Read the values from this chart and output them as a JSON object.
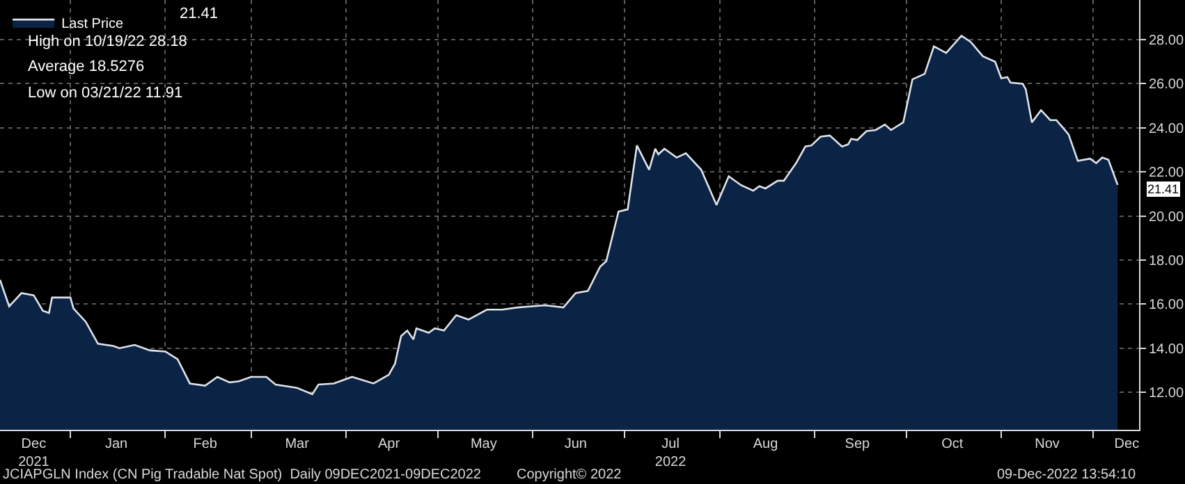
{
  "chart_data": {
    "type": "area",
    "x": [
      "2021-12-09",
      "2021-12-12",
      "2021-12-16",
      "2021-12-20",
      "2021-12-23",
      "2021-12-25",
      "2021-12-26",
      "2022-01-01",
      "2022-01-02",
      "2022-01-06",
      "2022-01-10",
      "2022-01-15",
      "2022-01-17",
      "2022-01-22",
      "2022-01-27",
      "2022-02-01",
      "2022-02-05",
      "2022-02-09",
      "2022-02-14",
      "2022-02-18",
      "2022-02-22",
      "2022-02-25",
      "2022-03-01",
      "2022-03-06",
      "2022-03-09",
      "2022-03-16",
      "2022-03-21",
      "2022-03-23",
      "2022-03-28",
      "2022-04-03",
      "2022-04-10",
      "2022-04-15",
      "2022-04-17",
      "2022-04-19",
      "2022-04-21",
      "2022-04-23",
      "2022-04-24",
      "2022-04-28",
      "2022-04-30",
      "2022-05-03",
      "2022-05-07",
      "2022-05-11",
      "2022-05-17",
      "2022-05-22",
      "2022-05-27",
      "2022-06-05",
      "2022-06-11",
      "2022-06-15",
      "2022-06-19",
      "2022-06-23",
      "2022-06-25",
      "2022-06-29",
      "2022-07-02",
      "2022-07-05",
      "2022-07-09",
      "2022-07-11",
      "2022-07-12",
      "2022-07-14",
      "2022-07-18",
      "2022-07-21",
      "2022-07-26",
      "2022-07-31",
      "2022-08-04",
      "2022-08-08",
      "2022-08-12",
      "2022-08-14",
      "2022-08-16",
      "2022-08-20",
      "2022-08-22",
      "2022-08-26",
      "2022-08-29",
      "2022-08-31",
      "2022-09-03",
      "2022-09-06",
      "2022-09-10",
      "2022-09-12",
      "2022-09-13",
      "2022-09-15",
      "2022-09-18",
      "2022-09-21",
      "2022-09-24",
      "2022-09-26",
      "2022-09-30",
      "2022-10-03",
      "2022-10-07",
      "2022-10-10",
      "2022-10-14",
      "2022-10-19",
      "2022-10-22",
      "2022-10-26",
      "2022-10-30",
      "2022-11-01",
      "2022-11-03",
      "2022-11-04",
      "2022-11-08",
      "2022-11-09",
      "2022-11-11",
      "2022-11-14",
      "2022-11-17",
      "2022-11-19",
      "2022-11-23",
      "2022-11-26",
      "2022-11-30",
      "2022-12-02",
      "2022-12-04",
      "2022-12-06",
      "2022-12-09"
    ],
    "series": [
      {
        "name": "Last Price",
        "color": "#0b2344",
        "values": [
          17.1,
          15.9,
          16.5,
          16.4,
          15.7,
          15.6,
          16.3,
          16.3,
          15.8,
          15.2,
          14.2,
          14.1,
          14.0,
          14.15,
          13.9,
          13.85,
          13.5,
          12.4,
          12.3,
          12.7,
          12.45,
          12.5,
          12.7,
          12.7,
          12.35,
          12.2,
          11.91,
          12.35,
          12.4,
          12.7,
          12.4,
          12.8,
          13.3,
          14.55,
          14.8,
          14.4,
          14.9,
          14.7,
          14.9,
          14.8,
          15.5,
          15.3,
          15.75,
          15.75,
          15.85,
          15.95,
          15.85,
          16.5,
          16.6,
          17.7,
          17.95,
          20.2,
          20.3,
          23.2,
          22.1,
          23.05,
          22.8,
          23.05,
          22.65,
          22.85,
          22.1,
          20.5,
          21.8,
          21.4,
          21.15,
          21.35,
          21.25,
          21.6,
          21.6,
          22.4,
          23.15,
          23.2,
          23.6,
          23.65,
          23.15,
          23.25,
          23.5,
          23.45,
          23.85,
          23.9,
          24.15,
          23.9,
          24.25,
          26.2,
          26.45,
          27.7,
          27.4,
          28.18,
          27.9,
          27.25,
          27.0,
          26.25,
          26.3,
          26.05,
          26.0,
          25.75,
          24.25,
          24.8,
          24.35,
          24.35,
          23.7,
          22.5,
          22.6,
          22.4,
          22.65,
          22.55,
          21.41
        ]
      }
    ],
    "xlim": [
      "2021-12-09",
      "2022-12-16"
    ],
    "xticks": [
      {
        "value": "2022-01-01",
        "label": null
      },
      {
        "value": "2022-02-01",
        "label": null
      },
      {
        "value": "2022-03-01",
        "label": null
      },
      {
        "value": "2022-04-01",
        "label": null
      },
      {
        "value": "2022-05-01",
        "label": null
      },
      {
        "value": "2022-06-01",
        "label": null
      },
      {
        "value": "2022-07-01",
        "label": null
      },
      {
        "value": "2022-08-01",
        "label": null
      },
      {
        "value": "2022-09-01",
        "label": null
      },
      {
        "value": "2022-10-01",
        "label": null
      },
      {
        "value": "2022-11-01",
        "label": null
      },
      {
        "value": "2022-12-01",
        "label": null
      },
      {
        "value": "2021-12-20",
        "label": "Dec\n2021"
      },
      {
        "value": "2022-01-16",
        "label": "Jan"
      },
      {
        "value": "2022-02-14",
        "label": "Feb"
      },
      {
        "value": "2022-03-16",
        "label": "Mar"
      },
      {
        "value": "2022-04-15",
        "label": "Apr"
      },
      {
        "value": "2022-05-16",
        "label": "May"
      },
      {
        "value": "2022-06-15",
        "label": "Jun"
      },
      {
        "value": "2022-07-16",
        "label": "Jul\n2022"
      },
      {
        "value": "2022-08-16",
        "label": "Aug"
      },
      {
        "value": "2022-09-15",
        "label": "Sep"
      },
      {
        "value": "2022-10-16",
        "label": "Oct"
      },
      {
        "value": "2022-11-16",
        "label": "Nov"
      },
      {
        "value": "2022-12-12",
        "label": "Dec"
      }
    ],
    "ylim": [
      10.3,
      29.8
    ],
    "yticks": [
      {
        "value": 12,
        "label": "12.00"
      },
      {
        "value": 14,
        "label": "14.00"
      },
      {
        "value": 16,
        "label": "16.00"
      },
      {
        "value": 18,
        "label": "18.00"
      },
      {
        "value": 20,
        "label": "20.00"
      },
      {
        "value": 22,
        "label": "22.00"
      },
      {
        "value": 24,
        "label": "24.00"
      },
      {
        "value": 26,
        "label": "26.00"
      },
      {
        "value": 28,
        "label": "28.00"
      }
    ],
    "grid": true,
    "legend": "top left",
    "annotations": [
      "21.41",
      "High on 10/19/22 28.18",
      "Average 18.5276",
      "Low on 03/21/22 11.91",
      "JCIAPGLN Index (CN Pig Tradable Nat Spot)  Daily 09DEC2021-09DEC2022",
      "Copyright© 2022",
      "09-Dec-2022 13:54:10",
      {
        "text": "21.41",
        "x": "2022-12-09",
        "y": 21.41
      }
    ]
  }
}
